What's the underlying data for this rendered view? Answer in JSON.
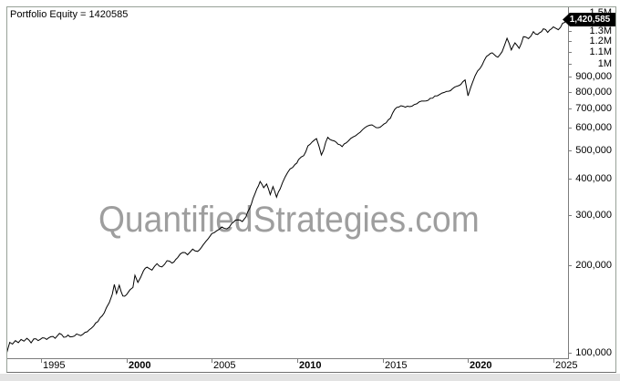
{
  "title": "Portfolio Equity = 1420585",
  "watermark": "QuantifiedStrategies.com",
  "badge": {
    "value": "1,420,585"
  },
  "colors": {
    "line": "#000000",
    "watermark": "#9e9e9e",
    "axis": "#7d7d7d",
    "badge_bg": "#000000",
    "badge_text": "#ffffff"
  },
  "chart_data": {
    "type": "line",
    "title": "Portfolio Equity",
    "xlabel": "",
    "ylabel": "",
    "y_scale": "log",
    "grid": false,
    "legend": "none",
    "final_value": 1420585,
    "x_range": [
      1993.0,
      2025.9
    ],
    "y_range": [
      95000,
      1570000
    ],
    "x_ticks": [
      {
        "year": 1995,
        "label": "1995",
        "bold": false
      },
      {
        "year": 2000,
        "label": "2000",
        "bold": true
      },
      {
        "year": 2005,
        "label": "2005",
        "bold": false
      },
      {
        "year": 2010,
        "label": "2010",
        "bold": true
      },
      {
        "year": 2015,
        "label": "2015",
        "bold": false
      },
      {
        "year": 2020,
        "label": "2020",
        "bold": true
      },
      {
        "year": 2025,
        "label": "2025",
        "bold": false
      }
    ],
    "y_ticks": [
      {
        "value": 100000,
        "label": "100,000"
      },
      {
        "value": 200000,
        "label": "200,000"
      },
      {
        "value": 300000,
        "label": "300,000"
      },
      {
        "value": 400000,
        "label": "400,000"
      },
      {
        "value": 500000,
        "label": "500,000"
      },
      {
        "value": 600000,
        "label": "600,000"
      },
      {
        "value": 700000,
        "label": "700,000"
      },
      {
        "value": 800000,
        "label": "800,000"
      },
      {
        "value": 900000,
        "label": "900,000"
      },
      {
        "value": 1000000,
        "label": "1M"
      },
      {
        "value": 1100000,
        "label": "1.1M"
      },
      {
        "value": 1200000,
        "label": "1.2M"
      },
      {
        "value": 1300000,
        "label": "1.3M"
      },
      {
        "value": 1400000,
        "label": ""
      },
      {
        "value": 1500000,
        "label": "1.5M"
      }
    ],
    "series": [
      {
        "name": "Portfolio Equity",
        "points": [
          [
            1993.0,
            100000
          ],
          [
            1993.08,
            104000
          ],
          [
            1993.17,
            108500
          ],
          [
            1993.33,
            107000
          ],
          [
            1993.5,
            110000
          ],
          [
            1993.67,
            108200
          ],
          [
            1993.83,
            111000
          ],
          [
            1994.0,
            109500
          ],
          [
            1994.17,
            112000
          ],
          [
            1994.42,
            108000
          ],
          [
            1994.58,
            111500
          ],
          [
            1994.83,
            110000
          ],
          [
            1995.08,
            112500
          ],
          [
            1995.33,
            111000
          ],
          [
            1995.58,
            113500
          ],
          [
            1995.83,
            112000
          ],
          [
            1996.08,
            116500
          ],
          [
            1996.33,
            113000
          ],
          [
            1996.58,
            115000
          ],
          [
            1996.83,
            113500
          ],
          [
            1997.08,
            116000
          ],
          [
            1997.33,
            114500
          ],
          [
            1997.58,
            117500
          ],
          [
            1997.83,
            120000
          ],
          [
            1998.08,
            123500
          ],
          [
            1998.33,
            128000
          ],
          [
            1998.58,
            134000
          ],
          [
            1998.83,
            143000
          ],
          [
            1999.0,
            149000
          ],
          [
            1999.17,
            159000
          ],
          [
            1999.29,
            172000
          ],
          [
            1999.42,
            160000
          ],
          [
            1999.58,
            171000
          ],
          [
            1999.79,
            157000
          ],
          [
            2000.0,
            158500
          ],
          [
            2000.21,
            165000
          ],
          [
            2000.38,
            168000
          ],
          [
            2000.5,
            185000
          ],
          [
            2000.67,
            175000
          ],
          [
            2000.83,
            182000
          ],
          [
            2001.0,
            192000
          ],
          [
            2001.21,
            197500
          ],
          [
            2001.5,
            193000
          ],
          [
            2001.79,
            203000
          ],
          [
            2002.08,
            198000
          ],
          [
            2002.38,
            208000
          ],
          [
            2002.67,
            204000
          ],
          [
            2003.0,
            213000
          ],
          [
            2003.29,
            222000
          ],
          [
            2003.58,
            218000
          ],
          [
            2003.88,
            228000
          ],
          [
            2004.17,
            224000
          ],
          [
            2004.5,
            236000
          ],
          [
            2004.79,
            248000
          ],
          [
            2005.0,
            258000
          ],
          [
            2005.29,
            264000
          ],
          [
            2005.58,
            272000
          ],
          [
            2005.88,
            268000
          ],
          [
            2006.17,
            280000
          ],
          [
            2006.5,
            288000
          ],
          [
            2006.79,
            284000
          ],
          [
            2007.0,
            295000
          ],
          [
            2007.21,
            315000
          ],
          [
            2007.42,
            342000
          ],
          [
            2007.63,
            368000
          ],
          [
            2007.83,
            391000
          ],
          [
            2008.04,
            372000
          ],
          [
            2008.21,
            383000
          ],
          [
            2008.42,
            352000
          ],
          [
            2008.58,
            375000
          ],
          [
            2008.79,
            345000
          ],
          [
            2009.0,
            368000
          ],
          [
            2009.29,
            405000
          ],
          [
            2009.58,
            432000
          ],
          [
            2009.88,
            448000
          ],
          [
            2010.08,
            465000
          ],
          [
            2010.38,
            480000
          ],
          [
            2010.63,
            519000
          ],
          [
            2011.13,
            550000
          ],
          [
            2011.42,
            483000
          ],
          [
            2011.79,
            556000
          ],
          [
            2012.17,
            540000
          ],
          [
            2012.63,
            516000
          ],
          [
            2013.0,
            540000
          ],
          [
            2013.42,
            563000
          ],
          [
            2013.96,
            600000
          ],
          [
            2014.38,
            614000
          ],
          [
            2014.75,
            600000
          ],
          [
            2015.08,
            618000
          ],
          [
            2015.46,
            647000
          ],
          [
            2015.71,
            694000
          ],
          [
            2016.08,
            715000
          ],
          [
            2016.58,
            710000
          ],
          [
            2017.0,
            726000
          ],
          [
            2017.42,
            742000
          ],
          [
            2017.79,
            758000
          ],
          [
            2018.21,
            774000
          ],
          [
            2018.75,
            802000
          ],
          [
            2019.08,
            817000
          ],
          [
            2019.58,
            847000
          ],
          [
            2019.83,
            878000
          ],
          [
            2020.0,
            774000
          ],
          [
            2020.17,
            829000
          ],
          [
            2020.42,
            908000
          ],
          [
            2020.71,
            962000
          ],
          [
            2021.08,
            1058000
          ],
          [
            2021.42,
            1090000
          ],
          [
            2021.75,
            1052000
          ],
          [
            2022.0,
            1100000
          ],
          [
            2022.29,
            1224000
          ],
          [
            2022.54,
            1115000
          ],
          [
            2022.75,
            1180000
          ],
          [
            2023.0,
            1130000
          ],
          [
            2023.25,
            1240000
          ],
          [
            2023.54,
            1220000
          ],
          [
            2023.83,
            1290000
          ],
          [
            2024.08,
            1262000
          ],
          [
            2024.42,
            1320000
          ],
          [
            2024.67,
            1282000
          ],
          [
            2025.0,
            1340000
          ],
          [
            2025.29,
            1310000
          ],
          [
            2025.54,
            1380000
          ],
          [
            2025.79,
            1420585
          ]
        ]
      }
    ]
  }
}
